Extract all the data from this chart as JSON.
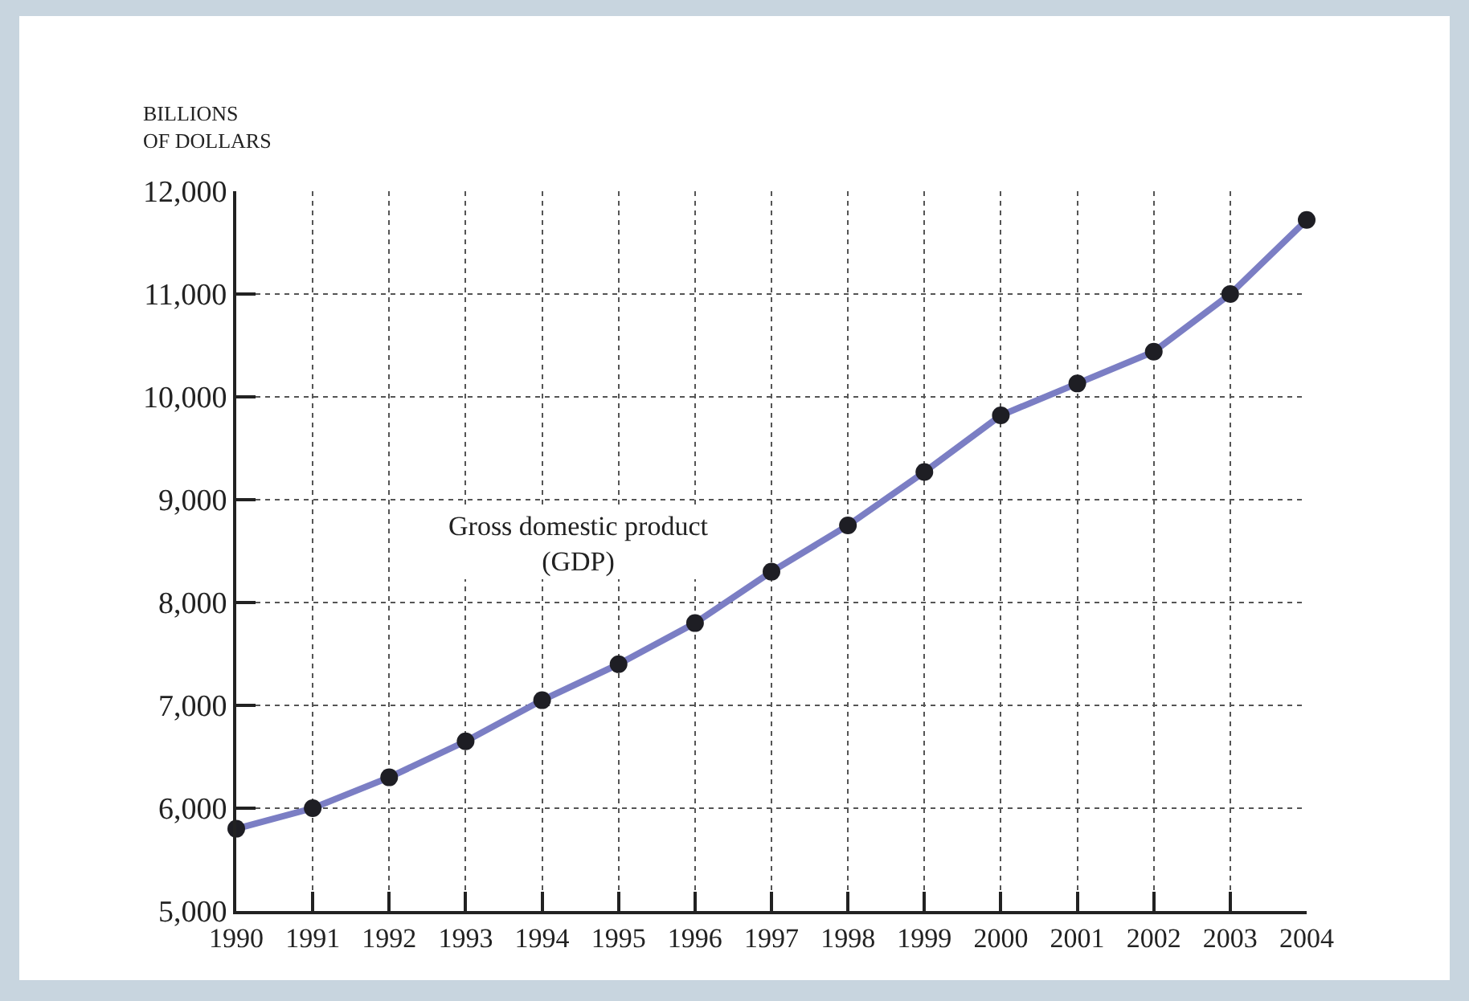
{
  "chart_data": {
    "type": "line",
    "ylabel": "BILLIONS OF DOLLARS",
    "annotations": [
      "Gross domestic product (GDP)"
    ],
    "x": [
      1990,
      1991,
      1992,
      1993,
      1994,
      1995,
      1996,
      1997,
      1998,
      1999,
      2000,
      2001,
      2002,
      2003,
      2004
    ],
    "series": [
      {
        "color": "#7b7ec4",
        "values": [
          5800,
          6000,
          6300,
          6650,
          7050,
          7400,
          7800,
          8300,
          8750,
          9270,
          9820,
          10130,
          10440,
          11000,
          11720
        ]
      }
    ],
    "xlim": [
      1990,
      2004
    ],
    "xticks": [
      1990,
      1991,
      1992,
      1993,
      1994,
      1995,
      1996,
      1997,
      1998,
      1999,
      2000,
      2001,
      2002,
      2003,
      2004
    ],
    "ylim": [
      5000,
      12000
    ],
    "yticks": [
      {
        "value": 5000,
        "label": "5,000"
      },
      {
        "value": 6000,
        "label": "6,000"
      },
      {
        "value": 7000,
        "label": "7,000"
      },
      {
        "value": 8000,
        "label": "8,000"
      },
      {
        "value": 9000,
        "label": "9,000"
      },
      {
        "value": 10000,
        "label": "10,000"
      },
      {
        "value": 11000,
        "label": "11,000"
      },
      {
        "value": 12000,
        "label": "12,000"
      }
    ],
    "grid": true,
    "marker": "circle",
    "line_style": "solid"
  }
}
